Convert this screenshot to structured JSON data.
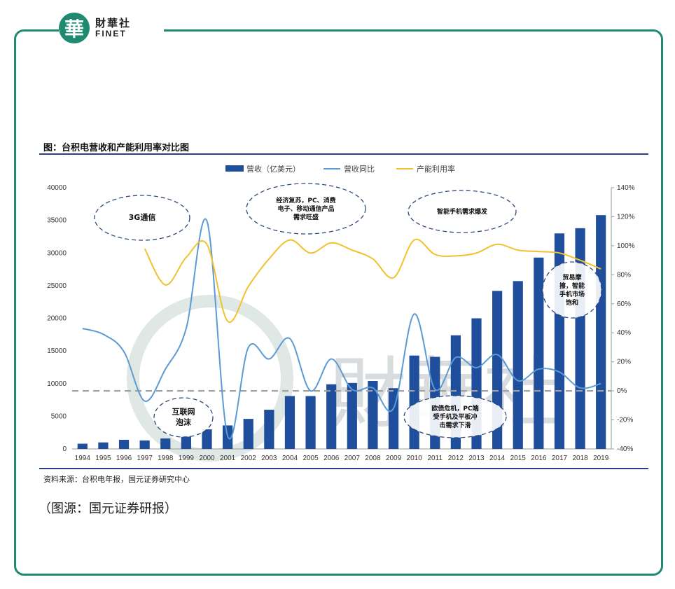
{
  "logo": {
    "mark": "華",
    "cn": "財華社",
    "en": "FINET"
  },
  "figure_title": "图：台积电营收和产能利用率对比图",
  "source": "资料来源：台积电年报，国元证券研究中心",
  "caption": "（图源：国元证券研报）",
  "watermark": "財華社",
  "colors": {
    "bar": "#1f4e9c",
    "yoy": "#5b9bd5",
    "util": "#f2c12e",
    "frame": "#1f8a70",
    "rule": "#2e3c8c",
    "zero_line": "#a0a0a0"
  },
  "chart_data": {
    "type": "bar",
    "categories": [
      "1994",
      "1995",
      "1996",
      "1997",
      "1998",
      "1999",
      "2000",
      "2001",
      "2002",
      "2003",
      "2004",
      "2005",
      "2006",
      "2007",
      "2008",
      "2009",
      "2010",
      "2011",
      "2012",
      "2013",
      "2014",
      "2015",
      "2016",
      "2017",
      "2018",
      "2019"
    ],
    "series": [
      {
        "name": "营收（亿美元）",
        "type": "bar",
        "axis": "left",
        "values": [
          800,
          1000,
          1400,
          1300,
          1600,
          2000,
          3000,
          3600,
          4600,
          6000,
          8100,
          8100,
          9900,
          10100,
          10400,
          9300,
          14300,
          14100,
          17400,
          20000,
          24200,
          25700,
          29300,
          33000,
          33800,
          35800
        ]
      },
      {
        "name": "营收同比",
        "type": "line",
        "axis": "right",
        "values": [
          43,
          39,
          27,
          -7,
          15,
          43,
          117,
          -31,
          30,
          22,
          36,
          0,
          22,
          1,
          2,
          -12,
          53,
          1,
          23,
          16,
          25,
          7,
          15,
          13,
          2,
          5
        ]
      },
      {
        "name": "产能利用率",
        "type": "line",
        "axis": "right",
        "values": [
          null,
          null,
          null,
          98,
          73,
          92,
          101,
          48,
          72,
          91,
          104,
          95,
          102,
          97,
          91,
          78,
          104,
          94,
          93,
          95,
          101,
          97,
          96,
          95,
          90,
          84
        ]
      }
    ],
    "ylim": [
      0,
      40000
    ],
    "yticks": [
      "0",
      "5000",
      "10000",
      "15000",
      "20000",
      "25000",
      "30000",
      "35000",
      "40000"
    ],
    "y2lim": [
      -40,
      140
    ],
    "y2ticks": [
      "-40%",
      "-20%",
      "0%",
      "20%",
      "40%",
      "60%",
      "80%",
      "100%",
      "120%",
      "140%"
    ],
    "legend_position": "top",
    "grid": false,
    "annotations": [
      {
        "text": "3G通信",
        "year": "1998"
      },
      {
        "text": "经济复苏，PC、消费电子、移动通信产品需求旺盛",
        "lines": [
          "经济复苏，PC、消费",
          "电子、移动通信产品",
          "需求旺盛"
        ],
        "year": "2004"
      },
      {
        "text": "智能手机需求爆发",
        "year": "2013"
      },
      {
        "text": "互联网泡沫",
        "lines": [
          "互联网",
          "泡沫"
        ],
        "year": "1999"
      },
      {
        "text": "欧债危机，PC端受手机及平板冲击需求下滑",
        "lines": [
          "欧债危机，PC端",
          "受手机及平板冲",
          "击需求下滑"
        ],
        "year": "2011"
      },
      {
        "text": "贸易摩擦，智能手机市场饱和",
        "lines": [
          "贸易摩",
          "擦，智能",
          "手机市场",
          "饱和"
        ],
        "year": "2018"
      }
    ]
  }
}
